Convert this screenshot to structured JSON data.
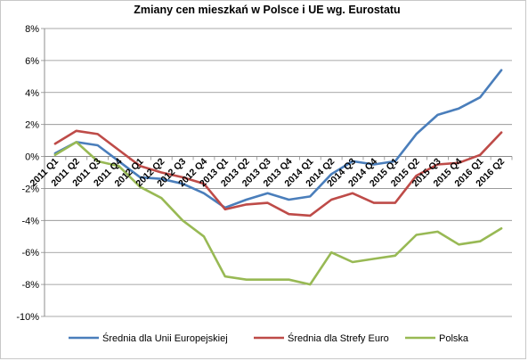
{
  "chart_data": {
    "type": "line",
    "title": "Zmiany cen mieszkań w Polsce i UE wg. Eurostatu",
    "xlabel": "",
    "ylabel": "",
    "categories": [
      "2011 Q1",
      "2011 Q2",
      "2011 Q3",
      "2011 Q4",
      "2012 Q1",
      "2012 Q2",
      "2012 Q3",
      "2012 Q4",
      "2013 Q1",
      "2013 Q2",
      "2013 Q3",
      "2013 Q4",
      "2014 Q1",
      "2014 Q2",
      "2014 Q3",
      "2014 Q4",
      "2015 Q1",
      "2015 Q2",
      "2015 Q3",
      "2015 Q4",
      "2016 Q1",
      "2016 Q2"
    ],
    "ylim": [
      -10,
      8
    ],
    "yticks": [
      8,
      6,
      4,
      2,
      0,
      -2,
      -4,
      -6,
      -8,
      -10
    ],
    "ytick_labels": [
      "8%",
      "6%",
      "4%",
      "2%",
      "0%",
      "-2%",
      "-4%",
      "-6%",
      "-8%",
      "-10%"
    ],
    "grid": true,
    "legend_position": "bottom",
    "series": [
      {
        "name": "Średnia dla Unii Europejskiej",
        "color": "#4a7ebb",
        "values": [
          0.2,
          0.9,
          0.7,
          -0.3,
          -1.3,
          -1.4,
          -1.7,
          -2.3,
          -3.2,
          -2.7,
          -2.3,
          -2.7,
          -2.5,
          -1.1,
          -0.3,
          -0.5,
          -0.3,
          1.4,
          2.6,
          3.0,
          3.7,
          5.4
        ]
      },
      {
        "name": "Średnia dla Strefy Euro",
        "color": "#be4b48",
        "values": [
          0.8,
          1.6,
          1.4,
          0.4,
          -0.6,
          -1.0,
          -1.3,
          -1.7,
          -3.3,
          -3.0,
          -2.9,
          -3.6,
          -3.7,
          -2.7,
          -2.3,
          -2.9,
          -2.9,
          -1.2,
          -0.5,
          -0.4,
          0.1,
          1.5
        ]
      },
      {
        "name": "Polska",
        "color": "#98b954",
        "values": [
          0.1,
          0.9,
          -0.3,
          -0.6,
          -1.9,
          -2.6,
          -4.0,
          -5.0,
          -7.5,
          -7.7,
          -7.7,
          -7.7,
          -8.0,
          -6.0,
          -6.6,
          -6.4,
          -6.2,
          -4.9,
          -4.7,
          -5.5,
          -5.3,
          -4.5
        ]
      }
    ]
  }
}
